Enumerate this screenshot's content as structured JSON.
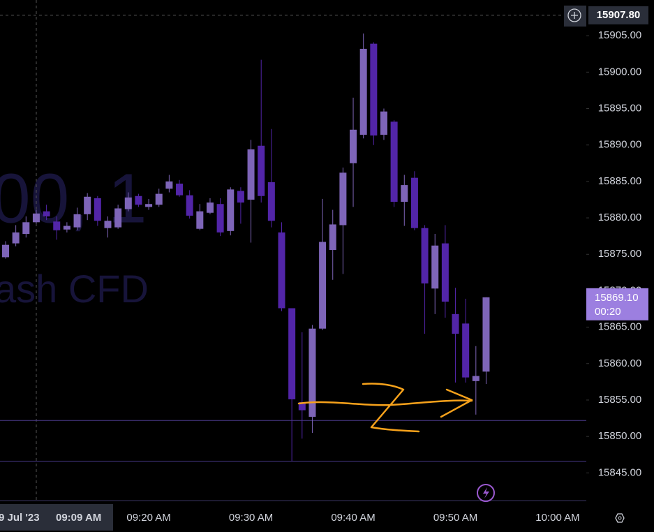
{
  "chart_data": {
    "type": "candlestick",
    "watermark": [
      "00, 1",
      "ash CFD"
    ],
    "categories": [
      null,
      null,
      null,
      null,
      null,
      null,
      null,
      null,
      null,
      null,
      null,
      null,
      null,
      null,
      "09:20 AM",
      null,
      null,
      null,
      null,
      null,
      null,
      null,
      null,
      null,
      "09:30 AM",
      null,
      null,
      null,
      null,
      null,
      null,
      null,
      null,
      null,
      "09:40 AM",
      null,
      null,
      null,
      null,
      null,
      null,
      null,
      null,
      null,
      "09:50 AM",
      null,
      null,
      null,
      null,
      null,
      null,
      null,
      null,
      null,
      "10:00 AM"
    ],
    "series": [
      {
        "up_color": "#7e65b8",
        "down_color": "#5225a8",
        "open": [
          15874.6,
          15876.5,
          15877.8,
          15879.4,
          15880.9,
          15879.5,
          15878.4,
          15878.7,
          15880.5,
          15882.7,
          15878.6,
          15878.7,
          15881.2,
          15883.0,
          15881.5,
          15881.8,
          15884.0,
          15884.7,
          15883.1,
          15878.5,
          15880.7,
          15881.9,
          15878.2,
          15883.7,
          15882.5,
          15889.9,
          15884.9,
          15878.0,
          15867.6,
          15854.7,
          15852.7,
          15864.8,
          15875.6,
          15879.0,
          15887.5,
          15891.4,
          15903.9,
          15891.4,
          15893.2,
          15882.2,
          15885.5,
          15878.6,
          15870.3,
          15876.5,
          15866.8,
          15865.5,
          15857.6,
          15858.9,
          null,
          null,
          null,
          null,
          null,
          null,
          null
        ],
        "high": [
          15876.8,
          15879.0,
          15880.2,
          15881.1,
          15881.8,
          15880.2,
          15879.4,
          15881.4,
          15883.4,
          15883.0,
          15880.2,
          15881.8,
          15883.5,
          15883.3,
          15882.6,
          15884.0,
          15885.9,
          15885.2,
          15883.8,
          15881.9,
          15882.7,
          15882.7,
          15884.2,
          15884.2,
          15890.7,
          15901.7,
          15892.2,
          15879.4,
          15867.6,
          15864.3,
          15865.3,
          15882.6,
          15881.1,
          15886.9,
          15896.5,
          15905.3,
          15904.1,
          15895.0,
          15893.4,
          15885.9,
          15886.4,
          15879.0,
          15877.8,
          15879.0,
          15870.4,
          15868.9,
          15862.4,
          15869.1,
          null,
          null,
          null,
          null,
          null,
          null,
          null
        ],
        "low": [
          15874.4,
          15876.1,
          15877.3,
          15879.2,
          15879.7,
          15877.0,
          15878.0,
          15878.3,
          15879.7,
          15878.9,
          15877.3,
          15878.5,
          15880.9,
          15881.5,
          15881.1,
          15881.5,
          15883.5,
          15882.9,
          15879.9,
          15878.3,
          15880.5,
          15877.5,
          15877.6,
          15879.2,
          15876.6,
          15882.1,
          15878.7,
          15867.2,
          15846.6,
          15849.7,
          15850.5,
          15864.6,
          15871.5,
          15872.3,
          15881.5,
          15890.9,
          15890.0,
          15890.7,
          15881.5,
          15878.9,
          15878.3,
          15864.1,
          15866.8,
          15866.3,
          15857.4,
          15857.4,
          15853.0,
          15857.2,
          null,
          null,
          null,
          null,
          null,
          null,
          null
        ],
        "close": [
          15876.3,
          15878.0,
          15879.4,
          15880.6,
          15880.2,
          15878.3,
          15878.9,
          15880.5,
          15882.9,
          15879.6,
          15879.6,
          15881.3,
          15882.8,
          15881.8,
          15881.9,
          15883.3,
          15885.0,
          15883.1,
          15880.3,
          15880.9,
          15882.1,
          15878.0,
          15883.9,
          15882.1,
          15889.4,
          15883.0,
          15879.6,
          15867.6,
          15855.1,
          15853.6,
          15864.8,
          15876.7,
          15879.1,
          15886.2,
          15892.1,
          15903.2,
          15891.3,
          15894.6,
          15882.2,
          15884.5,
          15878.6,
          15871.0,
          15876.2,
          15868.5,
          15864.1,
          15858.1,
          15858.3,
          15869.1,
          null,
          null,
          null,
          null,
          null,
          null,
          null
        ]
      }
    ],
    "ylim": [
      15841.2,
      15909.9
    ],
    "yticks": [
      {
        "value": 15845,
        "label": "15845.00"
      },
      {
        "value": 15850,
        "label": "15850.00"
      },
      {
        "value": 15855,
        "label": "15855.00"
      },
      {
        "value": 15860,
        "label": "15860.00"
      },
      {
        "value": 15865,
        "label": "15865.00"
      },
      {
        "value": 15870,
        "label": "15870.00"
      },
      {
        "value": 15875,
        "label": "15875.00"
      },
      {
        "value": 15880,
        "label": "15880.00"
      },
      {
        "value": 15885,
        "label": "15885.00"
      },
      {
        "value": 15890,
        "label": "15890.00"
      },
      {
        "value": 15895,
        "label": "15895.00"
      },
      {
        "value": 15900,
        "label": "15900.00"
      },
      {
        "value": 15905,
        "label": "15905.00"
      }
    ],
    "hlines": [
      15852.2,
      15846.6
    ],
    "hline_color": "#4a3a8a",
    "last_price": {
      "value": 15869.1,
      "label": "15869.10",
      "countdown": "00:20",
      "color": "#9c7fe0"
    },
    "crosshair": {
      "price": {
        "value": 15907.8,
        "label": "15907.80"
      },
      "date": "9 Jul '23",
      "time": "09:09 AM"
    }
  }
}
